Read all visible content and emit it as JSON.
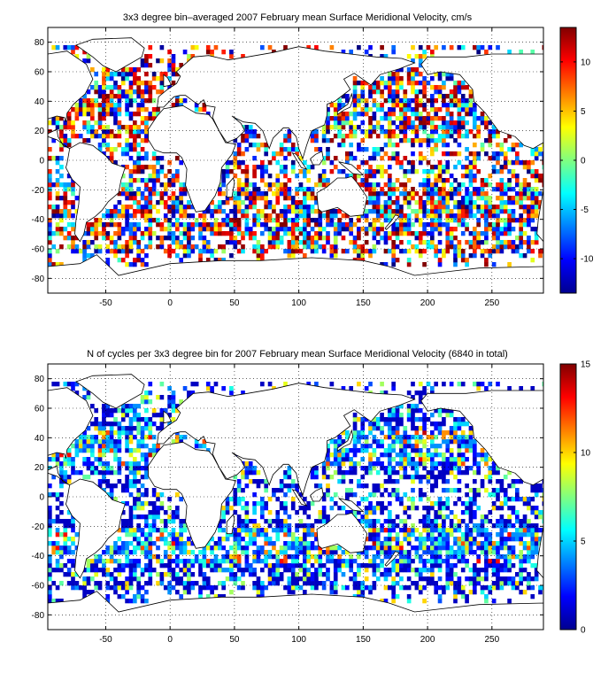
{
  "chart_data": [
    {
      "type": "heatmap",
      "title": "3x3 degree bin–averaged 2007 February mean Surface Meridional Velocity, cm/s",
      "xlim": [
        -95,
        290
      ],
      "ylim": [
        -90,
        90
      ],
      "x_ticks": [
        -50,
        0,
        50,
        100,
        150,
        200,
        250
      ],
      "y_ticks": [
        -80,
        -60,
        -40,
        -20,
        0,
        20,
        40,
        60,
        80
      ],
      "grid": true,
      "bin_size_deg": 3,
      "colorbar": {
        "min": -13.5,
        "max": 13.5,
        "ticks": [
          -10,
          -5,
          0,
          5,
          10
        ],
        "colormap": "jet"
      },
      "value_pattern": "diverging",
      "seed": 11
    },
    {
      "type": "heatmap",
      "title": "N of cycles per 3x3 degree bin for 2007 February mean Surface Meridional Velocity (6840 in total)",
      "xlim": [
        -95,
        290
      ],
      "ylim": [
        -90,
        90
      ],
      "x_ticks": [
        -50,
        0,
        50,
        100,
        150,
        200,
        250
      ],
      "y_ticks": [
        -80,
        -60,
        -40,
        -20,
        0,
        20,
        40,
        60,
        80
      ],
      "grid": true,
      "bin_size_deg": 3,
      "colorbar": {
        "min": 0,
        "max": 15,
        "ticks": [
          0,
          5,
          10,
          15
        ],
        "colormap": "jet"
      },
      "value_pattern": "counts",
      "seed": 11
    }
  ]
}
